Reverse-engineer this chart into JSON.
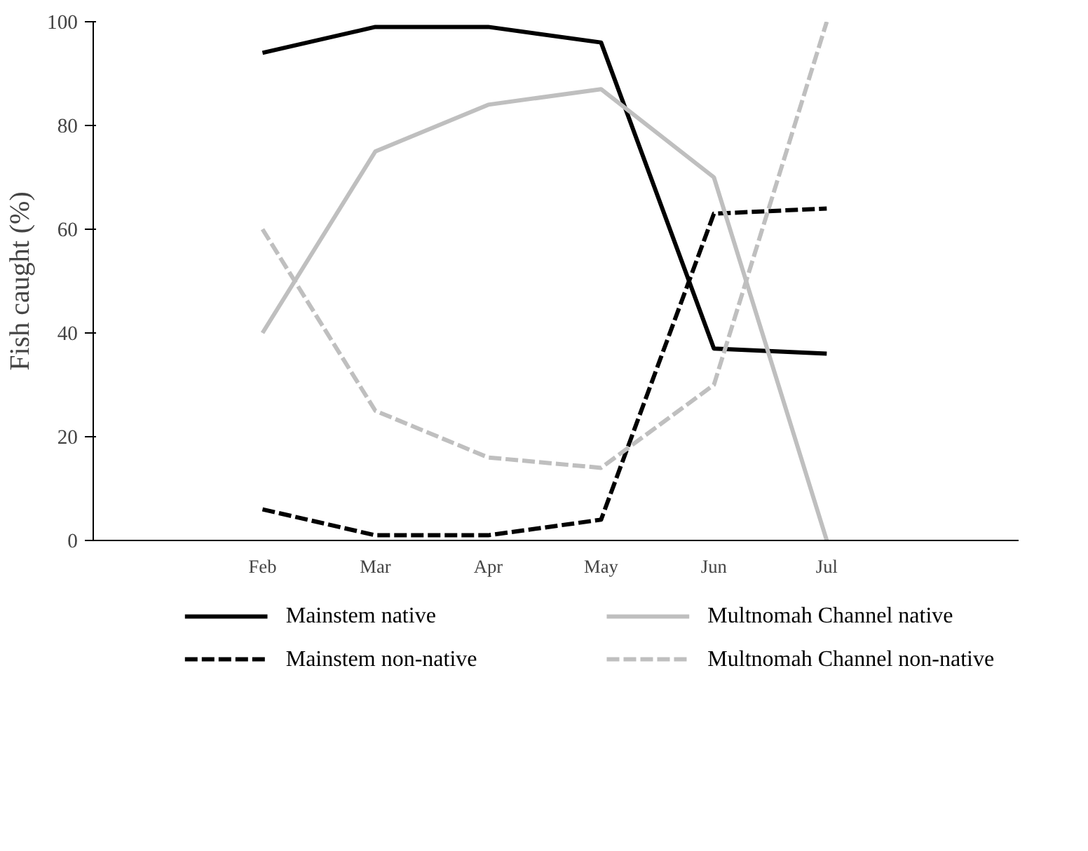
{
  "chart_data": {
    "type": "line",
    "ylabel": "Fish caught (%)",
    "categories": [
      "Feb",
      "Mar",
      "Apr",
      "May",
      "Jun",
      "Jul"
    ],
    "ylim": [
      0,
      100
    ],
    "yticks": [
      0,
      20,
      40,
      60,
      80,
      100
    ],
    "grid": false,
    "legend": "bottom",
    "marker": "none",
    "series": [
      {
        "name": "Mainstem native",
        "color": "#000000",
        "line_style": "solid",
        "values": [
          94,
          99,
          99,
          96,
          37,
          36
        ]
      },
      {
        "name": "Mainstem non-native",
        "color": "#000000",
        "line_style": "dashed",
        "values": [
          6,
          1,
          1,
          4,
          63,
          64
        ]
      },
      {
        "name": "Multnomah Channel native",
        "color": "#bfbfbf",
        "line_style": "solid",
        "values": [
          40,
          75,
          84,
          87,
          70,
          0
        ]
      },
      {
        "name": "Multnomah Channel non-native",
        "color": "#bfbfbf",
        "line_style": "dashed",
        "values": [
          60,
          25,
          16,
          14,
          30,
          100
        ]
      }
    ]
  }
}
